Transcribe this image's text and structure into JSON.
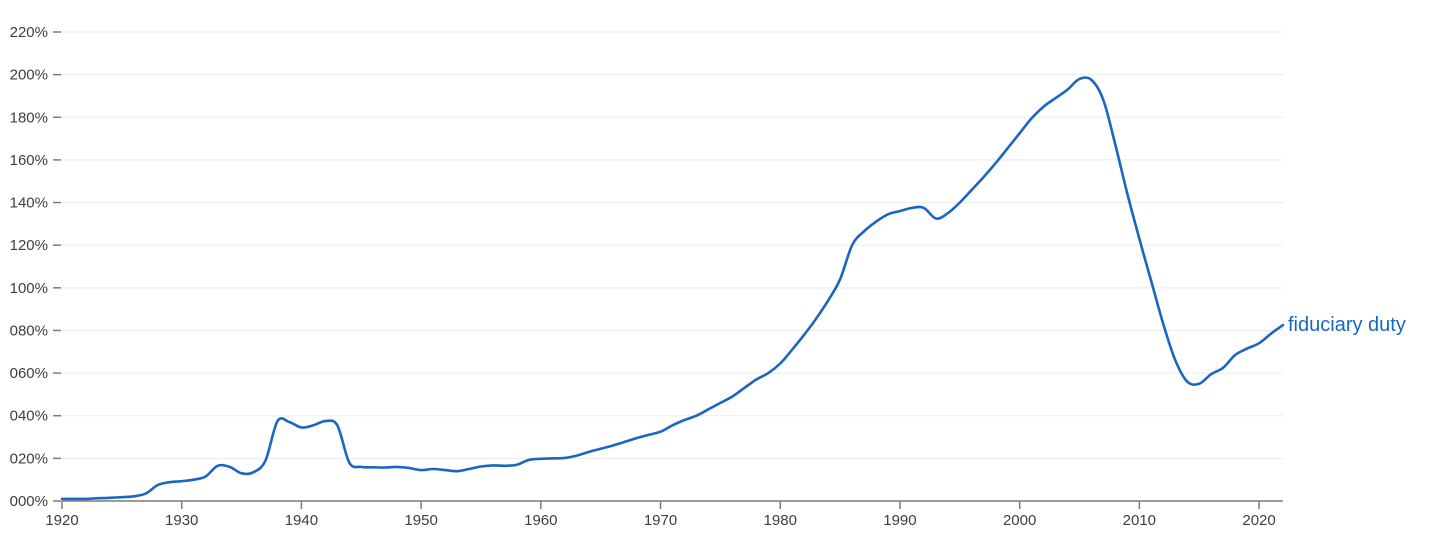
{
  "chart_data": {
    "type": "line",
    "title": "",
    "xlabel": "",
    "ylabel": "",
    "xlim": [
      1920,
      2022
    ],
    "ylim": [
      0,
      220
    ],
    "grid": true,
    "x_ticks": [
      1920,
      1930,
      1940,
      1950,
      1960,
      1970,
      1980,
      1990,
      2000,
      2010,
      2020
    ],
    "y_ticks": [
      {
        "value": 0,
        "label": "000%"
      },
      {
        "value": 20,
        "label": "020%"
      },
      {
        "value": 40,
        "label": "040%"
      },
      {
        "value": 60,
        "label": "060%"
      },
      {
        "value": 80,
        "label": "080%"
      },
      {
        "value": 100,
        "label": "100%"
      },
      {
        "value": 120,
        "label": "120%"
      },
      {
        "value": 140,
        "label": "140%"
      },
      {
        "value": 160,
        "label": "160%"
      },
      {
        "value": 180,
        "label": "180%"
      },
      {
        "value": 200,
        "label": "200%"
      },
      {
        "value": 220,
        "label": "220%"
      }
    ],
    "series": [
      {
        "name": "fiduciary duty",
        "color": "#1a66c2",
        "x": [
          1920,
          1921,
          1922,
          1923,
          1924,
          1925,
          1926,
          1927,
          1928,
          1929,
          1930,
          1931,
          1932,
          1933,
          1934,
          1935,
          1936,
          1937,
          1938,
          1939,
          1940,
          1941,
          1942,
          1943,
          1944,
          1945,
          1946,
          1947,
          1948,
          1949,
          1950,
          1951,
          1952,
          1953,
          1954,
          1955,
          1956,
          1957,
          1958,
          1959,
          1960,
          1961,
          1962,
          1963,
          1964,
          1965,
          1966,
          1967,
          1968,
          1969,
          1970,
          1971,
          1972,
          1973,
          1974,
          1975,
          1976,
          1977,
          1978,
          1979,
          1980,
          1981,
          1982,
          1983,
          1984,
          1985,
          1986,
          1987,
          1988,
          1989,
          1990,
          1991,
          1992,
          1993,
          1994,
          1995,
          1996,
          1997,
          1998,
          1999,
          2000,
          2001,
          2002,
          2003,
          2004,
          2005,
          2006,
          2007,
          2008,
          2009,
          2010,
          2011,
          2012,
          2013,
          2014,
          2015,
          2016,
          2017,
          2018,
          2019,
          2020,
          2021,
          2022
        ],
        "values": [
          1.0,
          1.0,
          1.0,
          1.3,
          1.5,
          1.8,
          2.2,
          3.5,
          7.5,
          8.8,
          9.3,
          10.0,
          11.5,
          16.5,
          16.0,
          13.0,
          13.5,
          19.0,
          37.5,
          37.0,
          34.5,
          35.5,
          37.5,
          35.5,
          18.0,
          16.0,
          15.8,
          15.7,
          16.0,
          15.5,
          14.5,
          15.0,
          14.5,
          14.0,
          15.0,
          16.2,
          16.7,
          16.5,
          17.0,
          19.3,
          19.8,
          20.0,
          20.2,
          21.3,
          23.0,
          24.5,
          26.0,
          27.7,
          29.5,
          31.0,
          32.5,
          35.5,
          38.0,
          40.0,
          43.0,
          46.0,
          49.0,
          53.0,
          57.0,
          60.0,
          64.5,
          71.0,
          78.0,
          85.5,
          94.0,
          104.0,
          120.0,
          126.5,
          131.0,
          134.5,
          136.0,
          137.5,
          137.5,
          132.5,
          135.0,
          140.0,
          146.0,
          152.0,
          158.5,
          165.5,
          172.5,
          179.5,
          185.0,
          189.0,
          193.0,
          198.0,
          197.5,
          188.0,
          167.0,
          144.0,
          123.0,
          103.0,
          83.0,
          66.0,
          56.0,
          55.0,
          59.5,
          62.5,
          68.5,
          71.5,
          74.0,
          78.5,
          82.5
        ]
      }
    ]
  }
}
